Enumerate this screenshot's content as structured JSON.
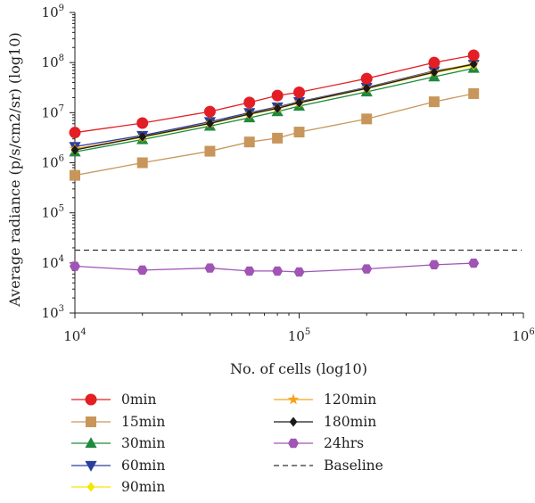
{
  "chart_data": {
    "type": "line",
    "xscale": "log",
    "yscale": "log",
    "xlim": [
      10000,
      1000000
    ],
    "ylim": [
      1000,
      1000000000
    ],
    "xlabel": "No. of cells (log10)",
    "ylabel": "Average radiance (p/s/cm2/sr) (log10)",
    "xticks": [
      {
        "base": "10",
        "exp": "4"
      },
      {
        "base": "10",
        "exp": "5"
      },
      {
        "base": "10",
        "exp": "6"
      }
    ],
    "yticks": [
      {
        "base": "10",
        "exp": "3"
      },
      {
        "base": "10",
        "exp": "4"
      },
      {
        "base": "10",
        "exp": "5"
      },
      {
        "base": "10",
        "exp": "6"
      },
      {
        "base": "10",
        "exp": "7"
      },
      {
        "base": "10",
        "exp": "8"
      },
      {
        "base": "10",
        "exp": "9"
      }
    ],
    "x": [
      10000,
      20000,
      40000,
      60000,
      80000,
      100000,
      200000,
      400000,
      600000
    ],
    "series": [
      {
        "name": "0min",
        "color": "#e31e24",
        "marker": "circle",
        "values": [
          4000000,
          6200000,
          10500000,
          16000000,
          22000000,
          25500000,
          48000000,
          100000000,
          140000000
        ]
      },
      {
        "name": "15min",
        "color": "#c8965a",
        "marker": "square",
        "values": [
          560000,
          1000000,
          1700000,
          2600000,
          3100000,
          4100000,
          7500000,
          16500000,
          24000000
        ]
      },
      {
        "name": "30min",
        "color": "#1e8a3c",
        "marker": "triangle-up",
        "values": [
          1650000,
          2900000,
          5400000,
          7900000,
          10500000,
          13500000,
          26000000,
          52000000,
          77000000
        ]
      },
      {
        "name": "60min",
        "color": "#2a3f9d",
        "marker": "triangle-down",
        "values": [
          2100000,
          3500000,
          6600000,
          10000000,
          13000000,
          16500000,
          32000000,
          68000000,
          92000000
        ]
      },
      {
        "name": "90min",
        "color": "#f5e600",
        "marker": "diamond",
        "values": [
          1850000,
          3200000,
          6000000,
          9200000,
          12000000,
          15500000,
          30000000,
          63000000,
          88000000
        ]
      },
      {
        "name": "120min",
        "color": "#f7a21b",
        "marker": "star",
        "values": [
          1900000,
          3300000,
          6200000,
          9500000,
          12500000,
          16000000,
          31000000,
          66000000,
          95000000
        ]
      },
      {
        "name": "180min",
        "color": "#1a1a1a",
        "marker": "diamond",
        "values": [
          1800000,
          3300000,
          6100000,
          9400000,
          12200000,
          15800000,
          30500000,
          64000000,
          93000000
        ]
      },
      {
        "name": "24hrs",
        "color": "#a055b5",
        "marker": "hexagon",
        "values": [
          8600,
          7200,
          7900,
          6900,
          6900,
          6600,
          7600,
          9200,
          9900
        ]
      }
    ],
    "baseline": {
      "name": "Baseline",
      "value": 18000,
      "color": "#333333",
      "dash": "dashed"
    },
    "legend": {
      "position": "bottom",
      "columns": 2
    }
  }
}
